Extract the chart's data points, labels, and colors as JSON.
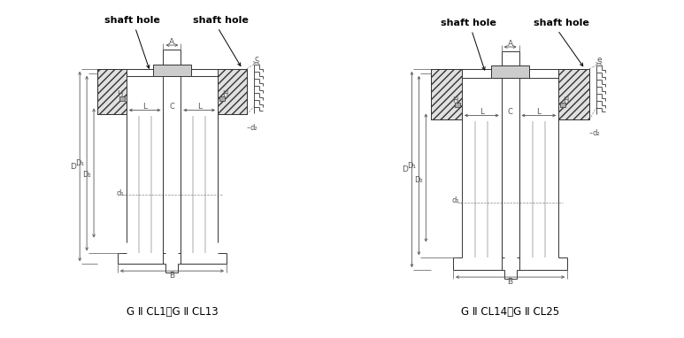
{
  "bg_color": "#ffffff",
  "line_color": "#333333",
  "dim_color": "#555555",
  "title1": "G Ⅱ CL1～G Ⅱ CL13",
  "title2": "G Ⅱ CL14～G Ⅱ CL25",
  "shaft_hole": "shaft hole"
}
